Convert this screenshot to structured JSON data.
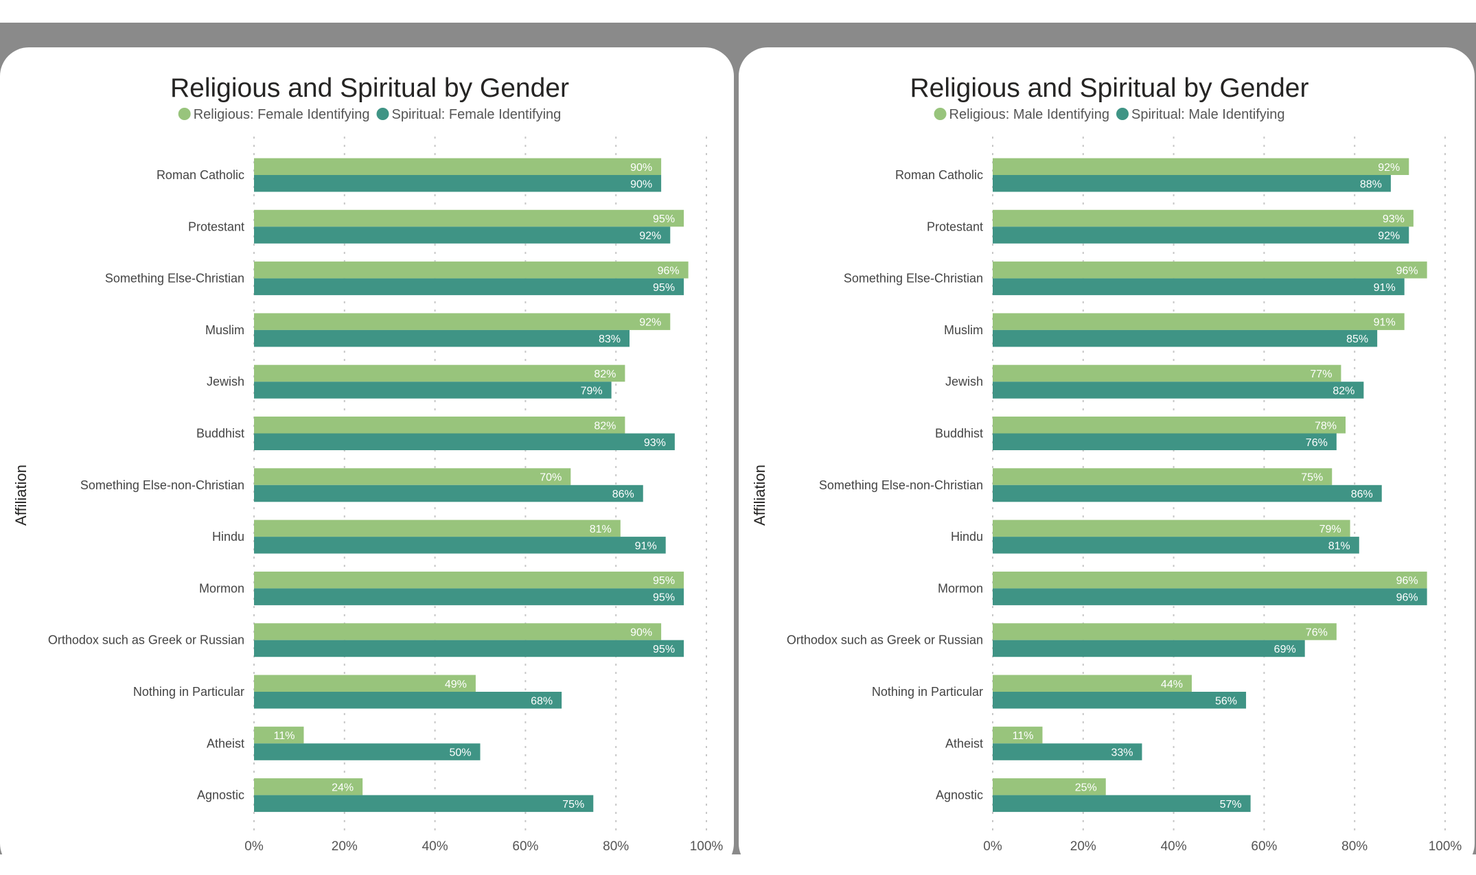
{
  "colors": {
    "religious": "#98c47c",
    "spiritual": "#3f9485",
    "frame": "#8a8a8a",
    "panel": "#ffffff"
  },
  "chart_data": [
    {
      "type": "bar",
      "orientation": "horizontal",
      "title": "Religious and Spiritual by Gender",
      "ylabel": "Affiliation",
      "xlabel": "",
      "xlim": [
        0,
        100
      ],
      "xticks": [
        "0%",
        "20%",
        "40%",
        "60%",
        "80%",
        "100%"
      ],
      "grid": true,
      "legend_position": "top",
      "categories": [
        "Roman Catholic",
        "Protestant",
        "Something Else-Christian",
        "Muslim",
        "Jewish",
        "Buddhist",
        "Something Else-non-Christian",
        "Hindu",
        "Mormon",
        "Orthodox such as Greek or Russian",
        "Nothing in Particular",
        "Atheist",
        "Agnostic"
      ],
      "series": [
        {
          "name": "Religious: Female Identifying",
          "color_key": "religious",
          "values": [
            90,
            95,
            96,
            92,
            82,
            82,
            70,
            81,
            95,
            90,
            49,
            11,
            24
          ],
          "labels": [
            "90%",
            "95%",
            "96%",
            "92%",
            "82%",
            "82%",
            "70%",
            "81%",
            "95%",
            "90%",
            "49%",
            "11%",
            "24%"
          ]
        },
        {
          "name": "Spiritual: Female Identifying",
          "color_key": "spiritual",
          "values": [
            90,
            92,
            95,
            83,
            79,
            93,
            86,
            91,
            95,
            95,
            68,
            50,
            75
          ],
          "labels": [
            "90%",
            "92%",
            "95%",
            "83%",
            "79%",
            "93%",
            "86%",
            "91%",
            "95%",
            "95%",
            "68%",
            "50%",
            "75%"
          ]
        }
      ]
    },
    {
      "type": "bar",
      "orientation": "horizontal",
      "title": "Religious and Spiritual by Gender",
      "ylabel": "Affiliation",
      "xlabel": "",
      "xlim": [
        0,
        100
      ],
      "xticks": [
        "0%",
        "20%",
        "40%",
        "60%",
        "80%",
        "100%"
      ],
      "grid": true,
      "legend_position": "top",
      "categories": [
        "Roman Catholic",
        "Protestant",
        "Something Else-Christian",
        "Muslim",
        "Jewish",
        "Buddhist",
        "Something Else-non-Christian",
        "Hindu",
        "Mormon",
        "Orthodox such as Greek or Russian",
        "Nothing in Particular",
        "Atheist",
        "Agnostic"
      ],
      "series": [
        {
          "name": "Religious: Male Identifying",
          "color_key": "religious",
          "values": [
            92,
            93,
            96,
            91,
            77,
            78,
            75,
            79,
            96,
            76,
            44,
            11,
            25
          ],
          "labels": [
            "92%",
            "93%",
            "96%",
            "91%",
            "77%",
            "78%",
            "75%",
            "79%",
            "96%",
            "76%",
            "44%",
            "11%",
            "25%"
          ]
        },
        {
          "name": "Spiritual: Male Identifying",
          "color_key": "spiritual",
          "values": [
            88,
            92,
            91,
            85,
            82,
            76,
            86,
            81,
            96,
            69,
            56,
            33,
            57
          ],
          "labels": [
            "88%",
            "92%",
            "91%",
            "85%",
            "82%",
            "76%",
            "86%",
            "81%",
            "96%",
            "69%",
            "56%",
            "33%",
            "57%"
          ]
        }
      ]
    }
  ]
}
